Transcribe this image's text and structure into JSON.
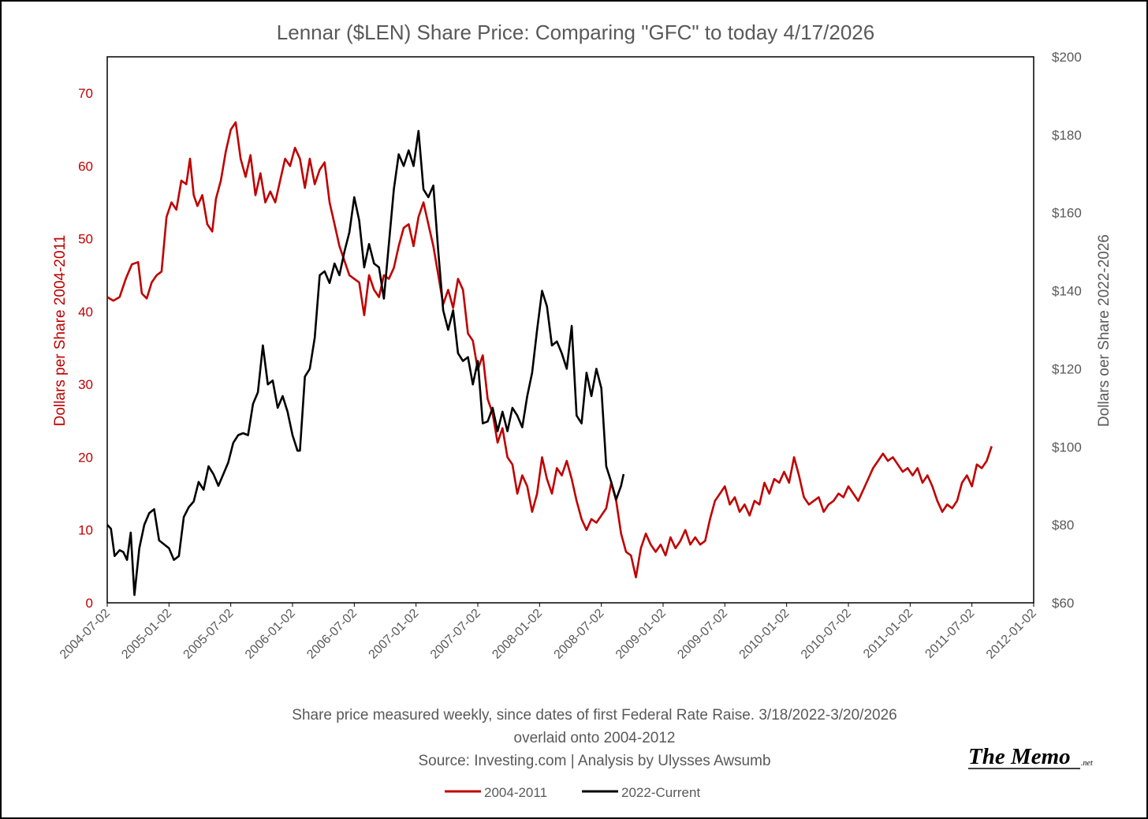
{
  "chart_data": {
    "type": "line",
    "title": "Lennar ($LEN) Share Price: Comparing \"GFC\" to today 4/17/2026",
    "ylabel_left": "Dollars per Share 2004-2011",
    "ylabel_right": "Dollars oer Share 2022-2026",
    "ylim_left": [
      0,
      75
    ],
    "ylim_right": [
      60,
      200
    ],
    "yticks_left": [
      "0",
      "10",
      "20",
      "30",
      "40",
      "50",
      "60",
      "70"
    ],
    "yticks_right": [
      "$60",
      "$80",
      "$100",
      "$120",
      "$140",
      "$160",
      "$180",
      "$200"
    ],
    "x_ticks": [
      "2004-07-02",
      "2005-01-02",
      "2005-07-02",
      "2006-01-02",
      "2006-07-02",
      "2007-01-02",
      "2007-07-02",
      "2008-01-02",
      "2008-07-02",
      "2009-01-02",
      "2009-07-02",
      "2010-01-02",
      "2010-07-02",
      "2011-01-02",
      "2011-07-02",
      "2012-01-02"
    ],
    "x_range_years": [
      2004.5,
      2012.0
    ],
    "series": [
      {
        "name": "2004-2011",
        "axis": "left",
        "color": "#c00000",
        "points": [
          [
            2004.5,
            42.0
          ],
          [
            2004.55,
            41.5
          ],
          [
            2004.6,
            42.0
          ],
          [
            2004.65,
            44.5
          ],
          [
            2004.7,
            46.5
          ],
          [
            2004.75,
            46.8
          ],
          [
            2004.78,
            42.5
          ],
          [
            2004.82,
            41.8
          ],
          [
            2004.86,
            44.0
          ],
          [
            2004.9,
            45.0
          ],
          [
            2004.94,
            45.5
          ],
          [
            2004.98,
            53.0
          ],
          [
            2005.02,
            55.0
          ],
          [
            2005.06,
            54.0
          ],
          [
            2005.1,
            58.0
          ],
          [
            2005.14,
            57.5
          ],
          [
            2005.17,
            61.0
          ],
          [
            2005.2,
            56.0
          ],
          [
            2005.23,
            54.5
          ],
          [
            2005.27,
            56.0
          ],
          [
            2005.31,
            52.0
          ],
          [
            2005.35,
            51.0
          ],
          [
            2005.38,
            55.5
          ],
          [
            2005.42,
            58.0
          ],
          [
            2005.46,
            62.0
          ],
          [
            2005.5,
            65.0
          ],
          [
            2005.54,
            66.0
          ],
          [
            2005.58,
            61.0
          ],
          [
            2005.62,
            58.5
          ],
          [
            2005.66,
            61.5
          ],
          [
            2005.7,
            56.0
          ],
          [
            2005.74,
            59.0
          ],
          [
            2005.78,
            55.0
          ],
          [
            2005.82,
            56.5
          ],
          [
            2005.86,
            55.0
          ],
          [
            2005.9,
            58.0
          ],
          [
            2005.94,
            61.0
          ],
          [
            2005.98,
            60.0
          ],
          [
            2006.02,
            62.5
          ],
          [
            2006.06,
            61.0
          ],
          [
            2006.1,
            57.0
          ],
          [
            2006.14,
            61.0
          ],
          [
            2006.18,
            57.5
          ],
          [
            2006.22,
            59.5
          ],
          [
            2006.26,
            60.5
          ],
          [
            2006.3,
            55.0
          ],
          [
            2006.34,
            52.0
          ],
          [
            2006.38,
            49.0
          ],
          [
            2006.42,
            47.0
          ],
          [
            2006.46,
            45.0
          ],
          [
            2006.5,
            44.5
          ],
          [
            2006.54,
            44.0
          ],
          [
            2006.58,
            39.5
          ],
          [
            2006.62,
            45.0
          ],
          [
            2006.66,
            43.0
          ],
          [
            2006.7,
            42.0
          ],
          [
            2006.74,
            45.0
          ],
          [
            2006.78,
            44.5
          ],
          [
            2006.82,
            46.0
          ],
          [
            2006.86,
            49.0
          ],
          [
            2006.9,
            51.5
          ],
          [
            2006.94,
            52.0
          ],
          [
            2006.98,
            49.0
          ],
          [
            2007.02,
            53.0
          ],
          [
            2007.06,
            55.0
          ],
          [
            2007.1,
            52.0
          ],
          [
            2007.14,
            49.0
          ],
          [
            2007.18,
            45.0
          ],
          [
            2007.22,
            41.0
          ],
          [
            2007.26,
            43.0
          ],
          [
            2007.3,
            40.5
          ],
          [
            2007.34,
            44.5
          ],
          [
            2007.38,
            43.0
          ],
          [
            2007.42,
            37.0
          ],
          [
            2007.46,
            36.0
          ],
          [
            2007.5,
            32.0
          ],
          [
            2007.54,
            34.0
          ],
          [
            2007.58,
            28.0
          ],
          [
            2007.62,
            26.0
          ],
          [
            2007.66,
            22.0
          ],
          [
            2007.7,
            24.0
          ],
          [
            2007.74,
            20.0
          ],
          [
            2007.78,
            19.0
          ],
          [
            2007.82,
            15.0
          ],
          [
            2007.86,
            17.5
          ],
          [
            2007.9,
            16.0
          ],
          [
            2007.94,
            12.5
          ],
          [
            2007.98,
            15.0
          ],
          [
            2008.02,
            20.0
          ],
          [
            2008.06,
            17.0
          ],
          [
            2008.1,
            15.0
          ],
          [
            2008.14,
            18.5
          ],
          [
            2008.18,
            17.5
          ],
          [
            2008.22,
            19.5
          ],
          [
            2008.26,
            17.0
          ],
          [
            2008.3,
            14.0
          ],
          [
            2008.34,
            11.5
          ],
          [
            2008.38,
            10.0
          ],
          [
            2008.42,
            11.5
          ],
          [
            2008.46,
            11.0
          ],
          [
            2008.5,
            12.0
          ],
          [
            2008.54,
            13.0
          ],
          [
            2008.58,
            16.5
          ],
          [
            2008.62,
            14.0
          ],
          [
            2008.66,
            9.5
          ],
          [
            2008.7,
            7.0
          ],
          [
            2008.74,
            6.5
          ],
          [
            2008.78,
            3.5
          ],
          [
            2008.82,
            7.5
          ],
          [
            2008.86,
            9.5
          ],
          [
            2008.9,
            8.0
          ],
          [
            2008.94,
            7.0
          ],
          [
            2008.98,
            8.0
          ],
          [
            2009.02,
            6.5
          ],
          [
            2009.06,
            9.0
          ],
          [
            2009.1,
            7.5
          ],
          [
            2009.14,
            8.5
          ],
          [
            2009.18,
            10.0
          ],
          [
            2009.22,
            8.0
          ],
          [
            2009.26,
            9.0
          ],
          [
            2009.3,
            8.0
          ],
          [
            2009.34,
            8.5
          ],
          [
            2009.38,
            11.5
          ],
          [
            2009.42,
            14.0
          ],
          [
            2009.46,
            15.0
          ],
          [
            2009.5,
            16.0
          ],
          [
            2009.54,
            13.5
          ],
          [
            2009.58,
            14.5
          ],
          [
            2009.62,
            12.5
          ],
          [
            2009.66,
            13.5
          ],
          [
            2009.7,
            12.0
          ],
          [
            2009.74,
            14.0
          ],
          [
            2009.78,
            13.5
          ],
          [
            2009.82,
            16.5
          ],
          [
            2009.86,
            15.0
          ],
          [
            2009.9,
            17.0
          ],
          [
            2009.94,
            16.5
          ],
          [
            2009.98,
            18.0
          ],
          [
            2010.02,
            16.5
          ],
          [
            2010.06,
            20.0
          ],
          [
            2010.1,
            17.5
          ],
          [
            2010.14,
            14.5
          ],
          [
            2010.18,
            13.5
          ],
          [
            2010.22,
            14.0
          ],
          [
            2010.26,
            14.5
          ],
          [
            2010.3,
            12.5
          ],
          [
            2010.34,
            13.5
          ],
          [
            2010.38,
            14.0
          ],
          [
            2010.42,
            15.0
          ],
          [
            2010.46,
            14.5
          ],
          [
            2010.5,
            16.0
          ],
          [
            2010.54,
            15.0
          ],
          [
            2010.58,
            14.0
          ],
          [
            2010.62,
            15.5
          ],
          [
            2010.66,
            17.0
          ],
          [
            2010.7,
            18.5
          ],
          [
            2010.74,
            19.5
          ],
          [
            2010.78,
            20.5
          ],
          [
            2010.82,
            19.5
          ],
          [
            2010.86,
            20.0
          ],
          [
            2010.9,
            19.0
          ],
          [
            2010.94,
            18.0
          ],
          [
            2010.98,
            18.5
          ],
          [
            2011.02,
            17.5
          ],
          [
            2011.06,
            18.5
          ],
          [
            2011.1,
            16.5
          ],
          [
            2011.14,
            17.5
          ],
          [
            2011.18,
            16.0
          ],
          [
            2011.22,
            14.0
          ],
          [
            2011.26,
            12.5
          ],
          [
            2011.3,
            13.5
          ],
          [
            2011.34,
            13.0
          ],
          [
            2011.38,
            14.0
          ],
          [
            2011.42,
            16.5
          ],
          [
            2011.46,
            17.5
          ],
          [
            2011.5,
            16.0
          ],
          [
            2011.54,
            19.0
          ],
          [
            2011.58,
            18.5
          ],
          [
            2011.62,
            19.5
          ],
          [
            2011.66,
            21.5
          ]
        ]
      },
      {
        "name": "2022-Current",
        "axis": "right",
        "color": "#000000",
        "points": [
          [
            2004.5,
            80.0
          ],
          [
            2004.53,
            79.0
          ],
          [
            2004.56,
            72.0
          ],
          [
            2004.6,
            73.5
          ],
          [
            2004.63,
            73.0
          ],
          [
            2004.66,
            71.0
          ],
          [
            2004.69,
            78.0
          ],
          [
            2004.72,
            62.0
          ],
          [
            2004.76,
            74.0
          ],
          [
            2004.8,
            80.0
          ],
          [
            2004.84,
            83.0
          ],
          [
            2004.88,
            84.0
          ],
          [
            2004.92,
            76.0
          ],
          [
            2004.96,
            75.0
          ],
          [
            2005.0,
            74.0
          ],
          [
            2005.04,
            71.0
          ],
          [
            2005.08,
            72.0
          ],
          [
            2005.12,
            82.0
          ],
          [
            2005.16,
            84.5
          ],
          [
            2005.2,
            86.0
          ],
          [
            2005.24,
            91.0
          ],
          [
            2005.28,
            89.0
          ],
          [
            2005.32,
            95.0
          ],
          [
            2005.36,
            93.0
          ],
          [
            2005.4,
            90.0
          ],
          [
            2005.44,
            93.0
          ],
          [
            2005.48,
            96.0
          ],
          [
            2005.52,
            101.0
          ],
          [
            2005.56,
            103.0
          ],
          [
            2005.6,
            103.5
          ],
          [
            2005.64,
            103.0
          ],
          [
            2005.68,
            111.0
          ],
          [
            2005.72,
            114.0
          ],
          [
            2005.76,
            126.0
          ],
          [
            2005.8,
            116.0
          ],
          [
            2005.84,
            117.0
          ],
          [
            2005.88,
            110.0
          ],
          [
            2005.92,
            113.0
          ],
          [
            2005.96,
            109.0
          ],
          [
            2006.0,
            103.0
          ],
          [
            2006.04,
            99.0
          ],
          [
            2006.06,
            99.0
          ],
          [
            2006.1,
            118.0
          ],
          [
            2006.14,
            120.0
          ],
          [
            2006.18,
            128.0
          ],
          [
            2006.22,
            144.0
          ],
          [
            2006.26,
            145.0
          ],
          [
            2006.3,
            142.0
          ],
          [
            2006.34,
            147.0
          ],
          [
            2006.38,
            144.0
          ],
          [
            2006.42,
            150.0
          ],
          [
            2006.46,
            155.0
          ],
          [
            2006.5,
            164.0
          ],
          [
            2006.54,
            158.0
          ],
          [
            2006.58,
            146.0
          ],
          [
            2006.62,
            152.0
          ],
          [
            2006.66,
            147.0
          ],
          [
            2006.7,
            146.0
          ],
          [
            2006.74,
            138.0
          ],
          [
            2006.78,
            152.0
          ],
          [
            2006.82,
            166.0
          ],
          [
            2006.86,
            175.0
          ],
          [
            2006.9,
            172.0
          ],
          [
            2006.94,
            176.0
          ],
          [
            2006.98,
            172.0
          ],
          [
            2007.02,
            181.0
          ],
          [
            2007.06,
            166.0
          ],
          [
            2007.1,
            164.0
          ],
          [
            2007.14,
            167.0
          ],
          [
            2007.18,
            150.0
          ],
          [
            2007.22,
            135.0
          ],
          [
            2007.26,
            130.0
          ],
          [
            2007.3,
            135.0
          ],
          [
            2007.34,
            124.0
          ],
          [
            2007.38,
            122.0
          ],
          [
            2007.42,
            123.0
          ],
          [
            2007.46,
            116.0
          ],
          [
            2007.5,
            122.0
          ],
          [
            2007.54,
            106.0
          ],
          [
            2007.58,
            106.5
          ],
          [
            2007.62,
            110.0
          ],
          [
            2007.66,
            104.0
          ],
          [
            2007.7,
            109.0
          ],
          [
            2007.74,
            104.0
          ],
          [
            2007.78,
            110.0
          ],
          [
            2007.82,
            108.0
          ],
          [
            2007.86,
            105.0
          ],
          [
            2007.9,
            113.0
          ],
          [
            2007.94,
            119.0
          ],
          [
            2007.98,
            130.0
          ],
          [
            2008.02,
            140.0
          ],
          [
            2008.06,
            136.0
          ],
          [
            2008.1,
            126.0
          ],
          [
            2008.14,
            127.0
          ],
          [
            2008.18,
            124.0
          ],
          [
            2008.22,
            120.0
          ],
          [
            2008.26,
            131.0
          ],
          [
            2008.3,
            108.0
          ],
          [
            2008.34,
            106.0
          ],
          [
            2008.38,
            119.0
          ],
          [
            2008.42,
            113.0
          ],
          [
            2008.46,
            120.0
          ],
          [
            2008.5,
            115.0
          ],
          [
            2008.54,
            95.0
          ],
          [
            2008.58,
            91.0
          ],
          [
            2008.62,
            86.5
          ],
          [
            2008.66,
            90.0
          ],
          [
            2008.68,
            93.0
          ]
        ]
      }
    ]
  },
  "notes": {
    "line1": "Share price measured weekly, since dates of first Federal Rate Raise. 3/18/2022-3/20/2026",
    "line2": "overlaid onto 2004-2012",
    "line3": "Source: Investing.com | Analysis by Ulysses Awsumb"
  },
  "logo": {
    "main": "The Memo",
    "sub": ".net"
  },
  "legend": {
    "series1": "2004-2011",
    "series2": "2022-Current"
  }
}
